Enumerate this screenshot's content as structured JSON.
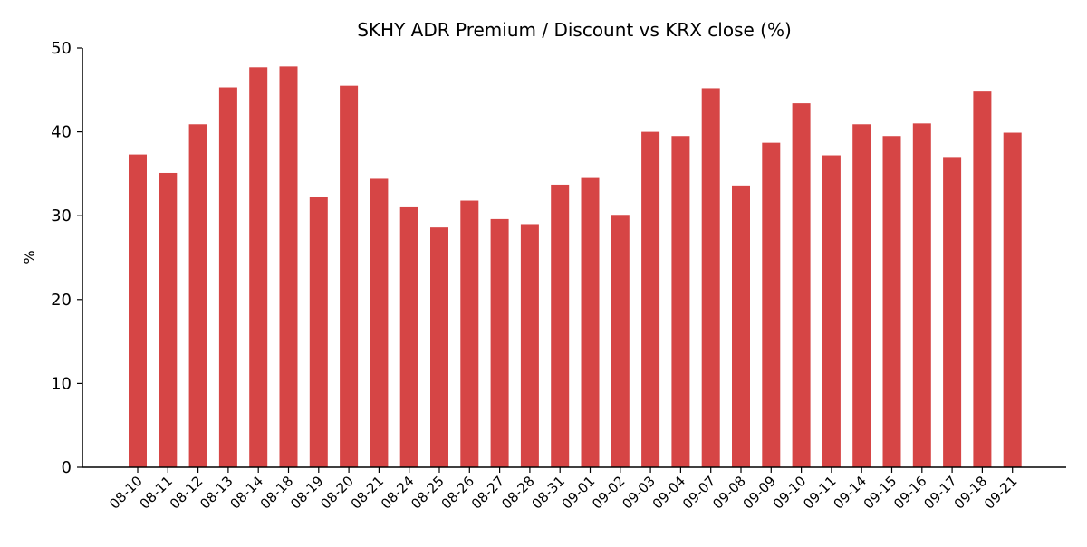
{
  "chart_data": {
    "type": "bar",
    "title": "SKHY ADR Premium / Discount vs KRX close (%)",
    "xlabel": "",
    "ylabel": "%",
    "ylim": [
      0,
      50
    ],
    "yticks": [
      0,
      10,
      20,
      30,
      40,
      50
    ],
    "grid": false,
    "bar_color": "#d64545",
    "categories": [
      "08-10",
      "08-11",
      "08-12",
      "08-13",
      "08-14",
      "08-18",
      "08-19",
      "08-20",
      "08-21",
      "08-24",
      "08-25",
      "08-26",
      "08-27",
      "08-28",
      "08-31",
      "09-01",
      "09-02",
      "09-03",
      "09-04",
      "09-07",
      "09-08",
      "09-09",
      "09-10",
      "09-11",
      "09-14",
      "09-15",
      "09-16",
      "09-17",
      "09-18",
      "09-21"
    ],
    "values": [
      37.3,
      35.1,
      40.9,
      45.3,
      47.7,
      47.8,
      32.2,
      45.5,
      34.4,
      31.0,
      28.6,
      31.8,
      29.6,
      29.0,
      33.7,
      34.6,
      30.1,
      40.0,
      39.5,
      45.2,
      33.6,
      38.7,
      43.4,
      37.2,
      40.9,
      39.5,
      41.0,
      37.0,
      44.8,
      39.9
    ]
  }
}
